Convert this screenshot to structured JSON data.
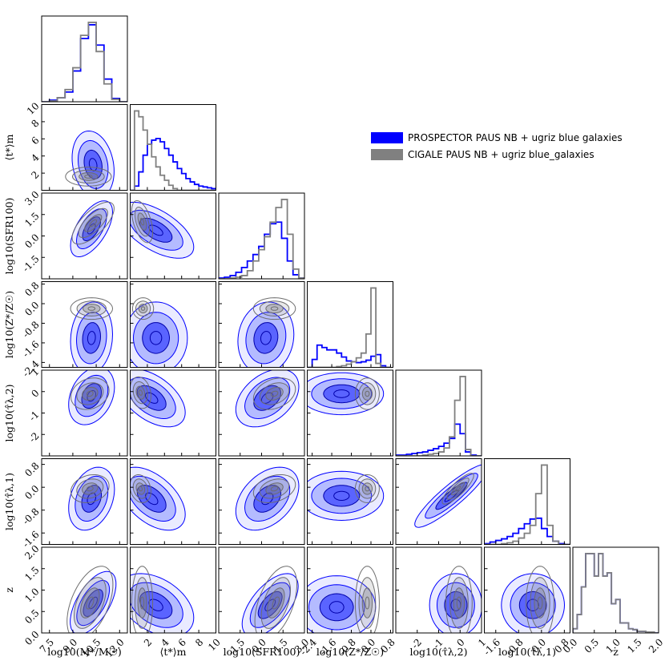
{
  "chart_data": {
    "type": "corner",
    "title": "",
    "legend": {
      "placement": "upper-right",
      "entries": [
        {
          "name": "PROSPECTOR PAUS NB + ugriz blue galaxies",
          "color": "#0000ff"
        },
        {
          "name": "CIGALE PAUS NB + ugriz blue_galaxies",
          "color": "#808080"
        }
      ]
    },
    "colors": {
      "prospector": "#0000ff",
      "cigale": "#808080",
      "fill_light": "#e6e8ff",
      "fill_mid": "#aab3ff",
      "fill_dark": "#4a55ff"
    },
    "parameters": [
      {
        "name": "logM",
        "label": "log10(M*/M☉)",
        "range": [
          7.0,
          12.5
        ],
        "ticks": [
          7.5,
          9.0,
          10.5,
          12.0
        ],
        "tick_labels": [
          "7.5",
          "9.0",
          "10.5",
          "12.0"
        ]
      },
      {
        "name": "tm",
        "label": "⟨t*⟩m",
        "range": [
          0,
          10
        ],
        "ticks": [
          2,
          4,
          6,
          8,
          10
        ],
        "tick_labels": [
          "2",
          "4",
          "6",
          "8",
          "10"
        ]
      },
      {
        "name": "logSFR",
        "label": "log10(SFR100)",
        "range": [
          -3.0,
          3.0
        ],
        "ticks": [
          -1.5,
          0.0,
          1.5,
          3.0
        ],
        "tick_labels": [
          "-1.5",
          "0.0",
          "1.5",
          "3.0"
        ]
      },
      {
        "name": "logZ",
        "label": "log10(Z*/Z☉)",
        "range": [
          -2.6,
          0.9
        ],
        "ticks": [
          -2.4,
          -1.6,
          -0.8,
          0.0,
          0.8
        ],
        "tick_labels": [
          "-2.4",
          "-1.6",
          "-0.8",
          "0.0",
          "0.8"
        ]
      },
      {
        "name": "logtau2",
        "label": "log10(τ̂λ,2)",
        "range": [
          -3.0,
          1.0
        ],
        "ticks": [
          -2,
          -1,
          0,
          1
        ],
        "tick_labels": [
          "-2",
          "-1",
          "0",
          "1"
        ]
      },
      {
        "name": "logtau1",
        "label": "log10(τ̂λ,1)",
        "range": [
          -2.0,
          1.0
        ],
        "ticks": [
          -1.6,
          -0.8,
          0.0,
          0.8
        ],
        "tick_labels": [
          "-1.6",
          "-0.8",
          "0.0",
          "0.8"
        ]
      },
      {
        "name": "z",
        "label": "z",
        "range": [
          0.0,
          2.0
        ],
        "ticks": [
          0.0,
          0.5,
          1.0,
          1.5,
          2.0
        ],
        "tick_labels": [
          "0.0",
          "0.5",
          "1.0",
          "1.5",
          "2.0"
        ]
      }
    ],
    "axis_labels_left": [
      "⟨t*⟩m",
      "log10(SFR100)",
      "log10(Z*/Z☉)",
      "log10(τ̂λ,2)",
      "log10(τ̂λ,1)",
      "z"
    ],
    "axis_labels_bottom": [
      "log10(M*/M☉)",
      "⟨t*⟩m",
      "log10(SFR100)",
      "log10(Z*/Z☉)",
      "log10(τ̂λ,2)",
      "log10(τ̂λ,1)",
      "z"
    ],
    "marginals": [
      {
        "param": "logM",
        "bins": [
          7.0,
          7.5,
          8.0,
          8.5,
          9.0,
          9.5,
          10.0,
          10.5,
          11.0,
          11.5,
          12.0,
          12.5
        ],
        "prospector": [
          0.0,
          0.02,
          0.05,
          0.12,
          0.38,
          0.78,
          0.95,
          0.7,
          0.28,
          0.04,
          0.0
        ],
        "cigale": [
          0.0,
          0.01,
          0.05,
          0.15,
          0.42,
          0.82,
          0.98,
          0.62,
          0.22,
          0.03,
          0.0
        ]
      },
      {
        "param": "tm",
        "bins": [
          0,
          0.5,
          1,
          1.5,
          2,
          2.5,
          3,
          3.5,
          4,
          4.5,
          5,
          5.5,
          6,
          6.5,
          7,
          7.5,
          8,
          8.5,
          9,
          9.5,
          10
        ],
        "prospector": [
          0.0,
          0.05,
          0.22,
          0.42,
          0.55,
          0.6,
          0.62,
          0.58,
          0.5,
          0.42,
          0.34,
          0.26,
          0.2,
          0.14,
          0.1,
          0.07,
          0.05,
          0.04,
          0.03,
          0.02
        ],
        "cigale": [
          0.0,
          0.95,
          0.88,
          0.72,
          0.55,
          0.4,
          0.28,
          0.18,
          0.12,
          0.06,
          0.02,
          0.0,
          0.0,
          0.0,
          0.0,
          0.0,
          0.0,
          0.0,
          0.0,
          0.0
        ]
      },
      {
        "param": "logSFR",
        "bins": [
          -3.0,
          -2.6,
          -2.2,
          -1.8,
          -1.4,
          -1.0,
          -0.6,
          -0.2,
          0.2,
          0.6,
          1.0,
          1.4,
          1.8,
          2.2,
          2.6,
          3.0
        ],
        "prospector": [
          0.01,
          0.02,
          0.04,
          0.08,
          0.14,
          0.22,
          0.3,
          0.4,
          0.55,
          0.68,
          0.7,
          0.5,
          0.22,
          0.05,
          0.01
        ],
        "cigale": [
          0.0,
          0.0,
          0.01,
          0.02,
          0.04,
          0.1,
          0.22,
          0.36,
          0.52,
          0.7,
          0.88,
          0.98,
          0.55,
          0.12,
          0.01
        ]
      },
      {
        "param": "logZ",
        "bins": [
          -2.6,
          -2.4,
          -2.2,
          -2.0,
          -1.8,
          -1.6,
          -1.4,
          -1.2,
          -1.0,
          -0.8,
          -0.6,
          -0.4,
          -0.2,
          0.0,
          0.2,
          0.4,
          0.6,
          0.8
        ],
        "prospector": [
          0.0,
          0.1,
          0.28,
          0.25,
          0.22,
          0.22,
          0.18,
          0.13,
          0.08,
          0.07,
          0.06,
          0.07,
          0.09,
          0.14,
          0.16,
          0.02,
          0.0
        ],
        "cigale": [
          0.0,
          0.0,
          0.0,
          0.0,
          0.0,
          0.0,
          0.01,
          0.02,
          0.04,
          0.07,
          0.12,
          0.18,
          0.42,
          1.0,
          0.05,
          0.0,
          0.0
        ]
      },
      {
        "param": "logtau2",
        "bins": [
          -3.0,
          -2.75,
          -2.5,
          -2.25,
          -2.0,
          -1.75,
          -1.5,
          -1.25,
          -1.0,
          -0.75,
          -0.5,
          -0.25,
          0.0,
          0.25,
          0.5,
          0.75,
          1.0
        ],
        "prospector": [
          0.01,
          0.01,
          0.02,
          0.03,
          0.04,
          0.05,
          0.07,
          0.09,
          0.12,
          0.16,
          0.22,
          0.4,
          0.28,
          0.05,
          0.01,
          0.0
        ],
        "cigale": [
          0.0,
          0.0,
          0.0,
          0.0,
          0.0,
          0.01,
          0.02,
          0.03,
          0.05,
          0.1,
          0.24,
          0.7,
          1.0,
          0.08,
          0.0,
          0.0
        ]
      },
      {
        "param": "logtau1",
        "bins": [
          -2.0,
          -1.8,
          -1.6,
          -1.4,
          -1.2,
          -1.0,
          -0.8,
          -0.6,
          -0.4,
          -0.2,
          0.0,
          0.2,
          0.4,
          0.6,
          0.8,
          1.0
        ],
        "prospector": [
          0.01,
          0.03,
          0.05,
          0.07,
          0.1,
          0.14,
          0.2,
          0.26,
          0.32,
          0.33,
          0.2,
          0.1,
          0.04,
          0.01,
          0.0
        ],
        "cigale": [
          0.0,
          0.0,
          0.0,
          0.01,
          0.02,
          0.04,
          0.08,
          0.14,
          0.24,
          0.64,
          1.0,
          0.24,
          0.04,
          0.0,
          0.0
        ]
      },
      {
        "param": "z",
        "bins": [
          0.0,
          0.1,
          0.2,
          0.3,
          0.4,
          0.5,
          0.6,
          0.7,
          0.8,
          0.9,
          1.0,
          1.1,
          1.2,
          1.3,
          1.4,
          1.5,
          1.6,
          1.7,
          1.8,
          1.9,
          2.0
        ],
        "prospector": [
          0.05,
          0.22,
          0.55,
          0.95,
          0.95,
          0.68,
          0.95,
          0.68,
          0.72,
          0.35,
          0.4,
          0.12,
          0.12,
          0.05,
          0.04,
          0.02,
          0.02,
          0.01,
          0.01,
          0.0
        ],
        "cigale": [
          0.05,
          0.22,
          0.55,
          0.95,
          0.95,
          0.68,
          0.95,
          0.68,
          0.72,
          0.35,
          0.4,
          0.12,
          0.12,
          0.05,
          0.04,
          0.02,
          0.02,
          0.01,
          0.01,
          0.0
        ]
      }
    ],
    "pairs": [
      {
        "row": 1,
        "col": 0,
        "prospector": {
          "mean": [
            10.3,
            3.0
          ],
          "sd": [
            0.55,
            1.6
          ],
          "rho": -0.2
        },
        "cigale": {
          "mean": [
            10.0,
            1.6
          ],
          "sd": [
            0.6,
            0.45
          ],
          "rho": 0.0
        }
      },
      {
        "row": 2,
        "col": 0,
        "prospector": {
          "mean": [
            10.2,
            0.5
          ],
          "sd": [
            0.55,
            0.8
          ],
          "rho": 0.6
        },
        "cigale": {
          "mean": [
            10.3,
            0.9
          ],
          "sd": [
            0.55,
            0.6
          ],
          "rho": 0.7
        }
      },
      {
        "row": 2,
        "col": 1,
        "prospector": {
          "mean": [
            3.0,
            0.4
          ],
          "sd": [
            1.8,
            0.8
          ],
          "rho": -0.6
        },
        "cigale": {
          "mean": [
            1.4,
            1.0
          ],
          "sd": [
            0.5,
            0.6
          ],
          "rho": -0.5
        }
      },
      {
        "row": 3,
        "col": 0,
        "prospector": {
          "mean": [
            10.2,
            -1.4
          ],
          "sd": [
            0.55,
            0.6
          ],
          "rho": 0.1
        },
        "cigale": {
          "mean": [
            10.2,
            -0.2
          ],
          "sd": [
            0.55,
            0.18
          ],
          "rho": 0.0
        }
      },
      {
        "row": 3,
        "col": 1,
        "prospector": {
          "mean": [
            3.0,
            -1.4
          ],
          "sd": [
            1.5,
            0.6
          ],
          "rho": 0.0
        },
        "cigale": {
          "mean": [
            1.5,
            -0.2
          ],
          "sd": [
            0.5,
            0.18
          ],
          "rho": 0.0
        }
      },
      {
        "row": 3,
        "col": 2,
        "prospector": {
          "mean": [
            0.3,
            -1.4
          ],
          "sd": [
            0.8,
            0.6
          ],
          "rho": 0.1
        },
        "cigale": {
          "mean": [
            0.9,
            -0.2
          ],
          "sd": [
            0.6,
            0.18
          ],
          "rho": 0.0
        }
      },
      {
        "row": 4,
        "col": 0,
        "prospector": {
          "mean": [
            10.2,
            -0.2
          ],
          "sd": [
            0.6,
            0.55
          ],
          "rho": 0.3
        },
        "cigale": {
          "mean": [
            10.1,
            -0.1
          ],
          "sd": [
            0.5,
            0.3
          ],
          "rho": 0.2
        }
      },
      {
        "row": 4,
        "col": 1,
        "prospector": {
          "mean": [
            2.5,
            -0.3
          ],
          "sd": [
            1.6,
            0.55
          ],
          "rho": -0.5
        },
        "cigale": {
          "mean": [
            1.2,
            -0.05
          ],
          "sd": [
            0.5,
            0.3
          ],
          "rho": -0.2
        }
      },
      {
        "row": 4,
        "col": 2,
        "prospector": {
          "mean": [
            0.4,
            -0.3
          ],
          "sd": [
            0.9,
            0.55
          ],
          "rho": 0.4
        },
        "cigale": {
          "mean": [
            0.9,
            -0.1
          ],
          "sd": [
            0.6,
            0.3
          ],
          "rho": 0.3
        }
      },
      {
        "row": 4,
        "col": 3,
        "prospector": {
          "mean": [
            -1.2,
            -0.1
          ],
          "sd": [
            0.7,
            0.4
          ],
          "rho": 0.0
        },
        "cigale": {
          "mean": [
            -0.15,
            -0.1
          ],
          "sd": [
            0.2,
            0.3
          ],
          "rho": 0.0
        }
      },
      {
        "row": 5,
        "col": 0,
        "prospector": {
          "mean": [
            10.2,
            -0.4
          ],
          "sd": [
            0.6,
            0.45
          ],
          "rho": 0.3
        },
        "cigale": {
          "mean": [
            10.1,
            -0.05
          ],
          "sd": [
            0.5,
            0.2
          ],
          "rho": 0.2
        }
      },
      {
        "row": 5,
        "col": 1,
        "prospector": {
          "mean": [
            2.5,
            -0.4
          ],
          "sd": [
            1.6,
            0.45
          ],
          "rho": -0.5
        },
        "cigale": {
          "mean": [
            1.2,
            -0.05
          ],
          "sd": [
            0.5,
            0.2
          ],
          "rho": -0.2
        }
      },
      {
        "row": 5,
        "col": 2,
        "prospector": {
          "mean": [
            0.4,
            -0.4
          ],
          "sd": [
            0.9,
            0.45
          ],
          "rho": 0.4
        },
        "cigale": {
          "mean": [
            0.9,
            -0.05
          ],
          "sd": [
            0.6,
            0.2
          ],
          "rho": 0.3
        }
      },
      {
        "row": 5,
        "col": 3,
        "prospector": {
          "mean": [
            -1.2,
            -0.3
          ],
          "sd": [
            0.7,
            0.35
          ],
          "rho": 0.0
        },
        "cigale": {
          "mean": [
            -0.15,
            -0.05
          ],
          "sd": [
            0.2,
            0.2
          ],
          "rho": 0.0
        }
      },
      {
        "row": 5,
        "col": 4,
        "prospector": {
          "mean": [
            -0.4,
            -0.3
          ],
          "sd": [
            0.7,
            0.45
          ],
          "rho": 0.9
        },
        "cigale": {
          "mean": [
            -0.1,
            -0.05
          ],
          "sd": [
            0.3,
            0.22
          ],
          "rho": 0.85
        }
      },
      {
        "row": 6,
        "col": 0,
        "prospector": {
          "mean": [
            10.3,
            0.7
          ],
          "sd": [
            0.6,
            0.3
          ],
          "rho": 0.6
        },
        "cigale": {
          "mean": [
            10.1,
            0.7
          ],
          "sd": [
            0.6,
            0.35
          ],
          "rho": 0.5
        }
      },
      {
        "row": 6,
        "col": 1,
        "prospector": {
          "mean": [
            3.0,
            0.65
          ],
          "sd": [
            1.8,
            0.3
          ],
          "rho": -0.4
        },
        "cigale": {
          "mean": [
            1.4,
            0.7
          ],
          "sd": [
            0.5,
            0.35
          ],
          "rho": 0.0
        }
      },
      {
        "row": 6,
        "col": 2,
        "prospector": {
          "mean": [
            0.6,
            0.65
          ],
          "sd": [
            0.8,
            0.3
          ],
          "rho": 0.6
        },
        "cigale": {
          "mean": [
            1.0,
            0.7
          ],
          "sd": [
            0.6,
            0.35
          ],
          "rho": 0.5
        }
      },
      {
        "row": 6,
        "col": 3,
        "prospector": {
          "mean": [
            -1.4,
            0.6
          ],
          "sd": [
            0.65,
            0.3
          ],
          "rho": 0.0
        },
        "cigale": {
          "mean": [
            -0.15,
            0.7
          ],
          "sd": [
            0.2,
            0.35
          ],
          "rho": 0.0
        }
      },
      {
        "row": 6,
        "col": 4,
        "prospector": {
          "mean": [
            -0.2,
            0.65
          ],
          "sd": [
            0.5,
            0.3
          ],
          "rho": 0.0
        },
        "cigale": {
          "mean": [
            -0.05,
            0.7
          ],
          "sd": [
            0.25,
            0.35
          ],
          "rho": 0.0
        }
      },
      {
        "row": 6,
        "col": 5,
        "prospector": {
          "mean": [
            -0.3,
            0.65
          ],
          "sd": [
            0.45,
            0.3
          ],
          "rho": 0.0
        },
        "cigale": {
          "mean": [
            -0.05,
            0.7
          ],
          "sd": [
            0.2,
            0.35
          ],
          "rho": 0.0
        }
      }
    ]
  }
}
